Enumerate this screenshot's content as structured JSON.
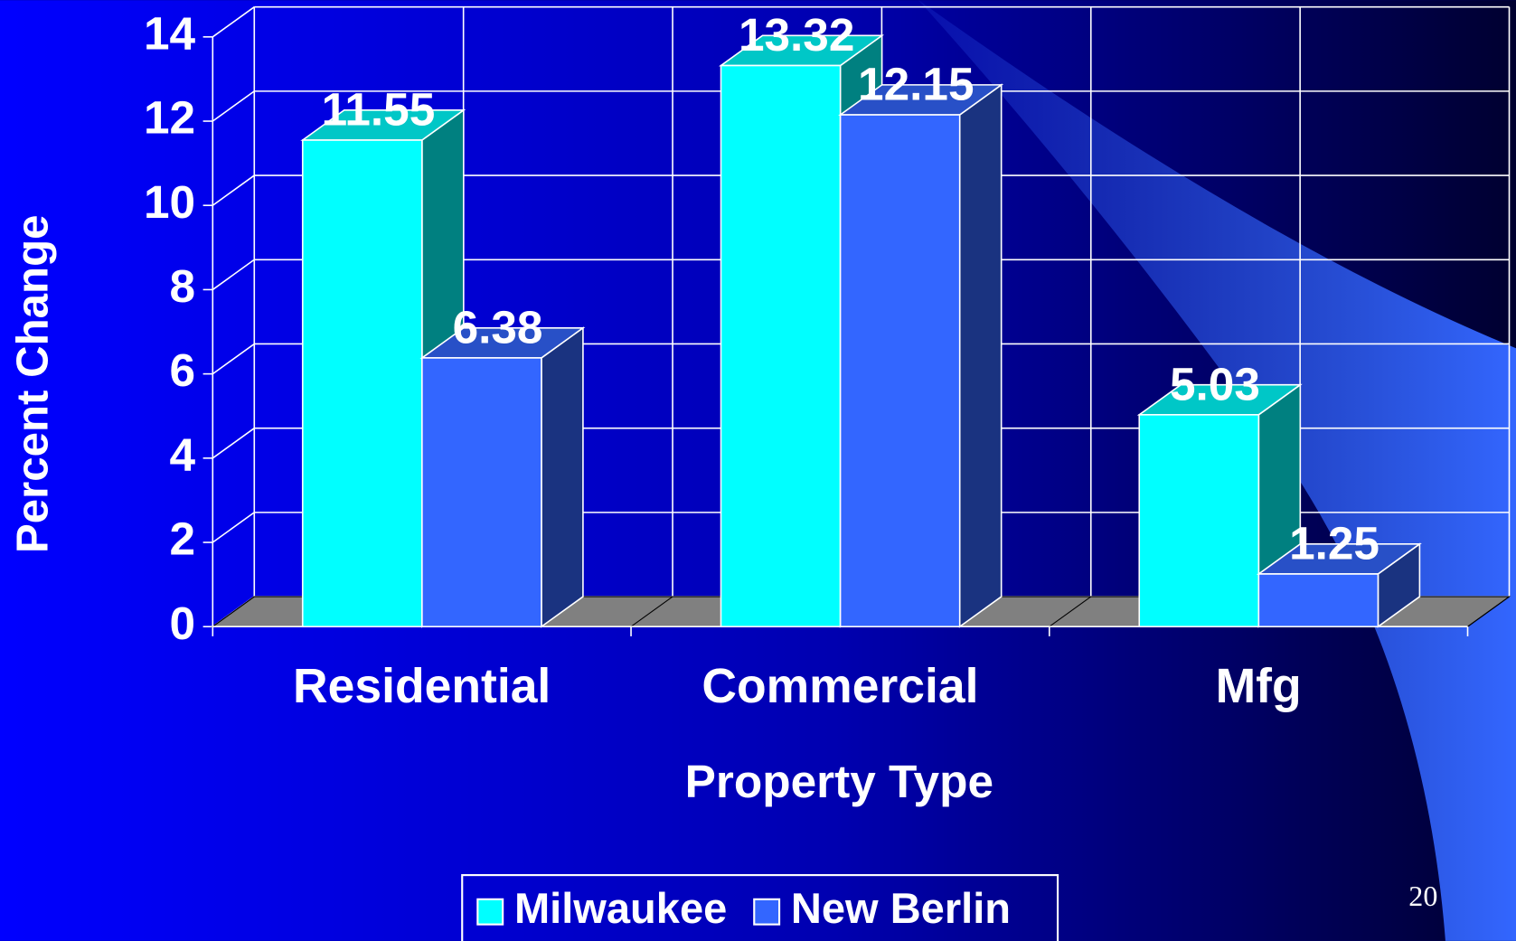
{
  "chart_data": {
    "type": "bar3d",
    "xlabel": "Property Type",
    "ylabel": "Percent Change",
    "categories": [
      "Residential",
      "Commercial",
      "Mfg"
    ],
    "series": [
      {
        "name": "Milwaukee",
        "color": "#00ffff",
        "values": [
          11.55,
          13.32,
          5.03
        ]
      },
      {
        "name": "New Berlin",
        "color": "#3366ff",
        "values": [
          6.38,
          12.15,
          1.25
        ]
      }
    ],
    "ylim": [
      0,
      14
    ],
    "yticks": [
      0,
      2,
      4,
      6,
      8,
      10,
      12,
      14
    ],
    "grid": true,
    "legend": "bottom"
  },
  "slide_number": "20"
}
